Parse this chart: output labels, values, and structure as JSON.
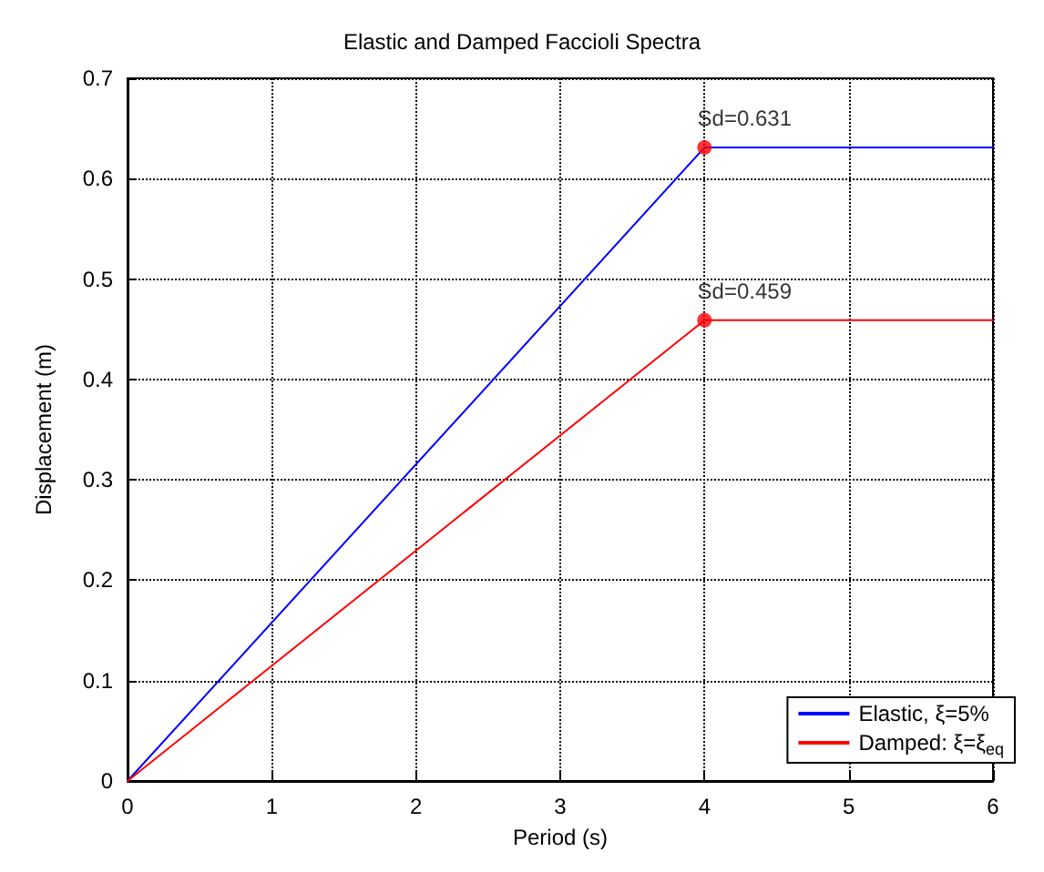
{
  "chart_data": {
    "type": "line",
    "title": "Elastic and Damped Faccioli Spectra",
    "xlabel": "Period (s)",
    "ylabel": "Displacement (m)",
    "series": [
      {
        "name": "Elastic, ξ=5%",
        "color": "#0000ff",
        "x": [
          0,
          4,
          6
        ],
        "values": [
          0,
          0.631,
          0.631
        ]
      },
      {
        "name": "Damped: ξ=ξ$_{eq}$",
        "color": "#ff0000",
        "x": [
          0,
          4,
          6
        ],
        "values": [
          0,
          0.459,
          0.459
        ]
      },
      {
        "type": "scatter",
        "marker": "circle",
        "color": "#ff0000",
        "x": [
          4,
          4
        ],
        "values": [
          0.631,
          0.459
        ],
        "value_labels": [
          "Sd=0.631",
          "Sd=0.459"
        ]
      }
    ],
    "xlim": [
      0,
      6
    ],
    "xticks": [
      0,
      1,
      2,
      3,
      4,
      5,
      6
    ],
    "ylim": [
      0,
      0.7
    ],
    "yticks": [
      0,
      0.1,
      0.2,
      0.3,
      0.4,
      0.5,
      0.6,
      0.7
    ],
    "grid": true,
    "legend": "bottom right",
    "line_style": "solid"
  }
}
